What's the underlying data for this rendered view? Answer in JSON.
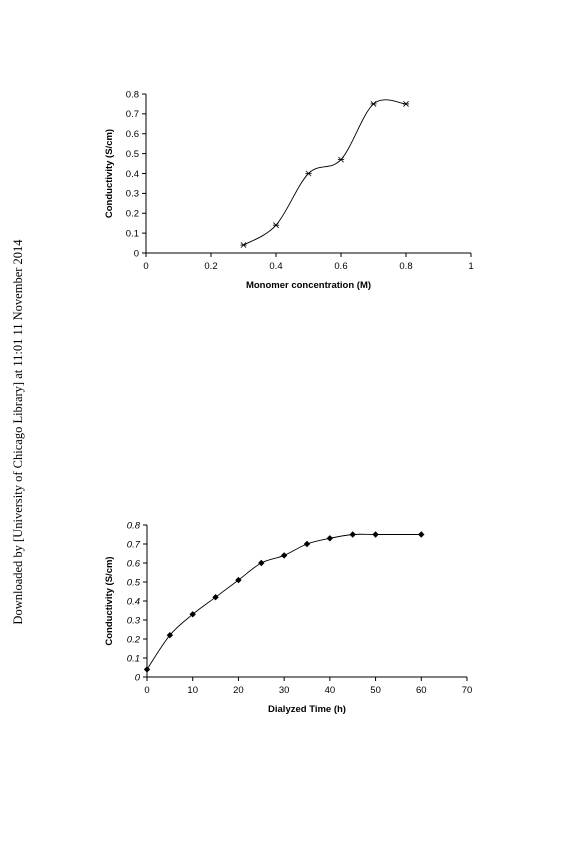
{
  "watermark": "Downloaded by [University of Chicago Library] at 11:01 11 November 2014",
  "chart_data": [
    {
      "type": "line",
      "marker": "star",
      "title": "",
      "xlabel": "Monomer concentration (M)",
      "ylabel": "Conductivity (S/cm)",
      "xlim": [
        0,
        1
      ],
      "ylim": [
        0,
        0.8
      ],
      "xticks": [
        "0",
        "0.2",
        "0.4",
        "0.6",
        "0.8",
        "1"
      ],
      "yticks": [
        "0",
        "0.1",
        "0.2",
        "0.3",
        "0.4",
        "0.5",
        "0.6",
        "0.7",
        "0.8"
      ],
      "x": [
        0.3,
        0.4,
        0.5,
        0.6,
        0.7,
        0.8
      ],
      "y": [
        0.04,
        0.14,
        0.4,
        0.47,
        0.75,
        0.75
      ],
      "grid": false,
      "legend": "none"
    },
    {
      "type": "line",
      "marker": "diamond",
      "title": "",
      "xlabel": "Dialyzed Time (h)",
      "ylabel": "Conductivity (S/cm)",
      "xlim": [
        0,
        70
      ],
      "ylim": [
        0,
        0.8
      ],
      "xticks": [
        "0",
        "10",
        "20",
        "30",
        "40",
        "50",
        "60",
        "70"
      ],
      "yticks": [
        "0",
        "0.1",
        "0.2",
        "0.3",
        "0.4",
        "0.5",
        "0.6",
        "0.7",
        "0.8"
      ],
      "x": [
        0,
        5,
        10,
        15,
        20,
        25,
        30,
        35,
        40,
        45,
        50,
        60
      ],
      "y": [
        0.04,
        0.22,
        0.33,
        0.42,
        0.51,
        0.6,
        0.64,
        0.7,
        0.73,
        0.75,
        0.75,
        0.75
      ],
      "grid": false,
      "legend": "none"
    }
  ]
}
